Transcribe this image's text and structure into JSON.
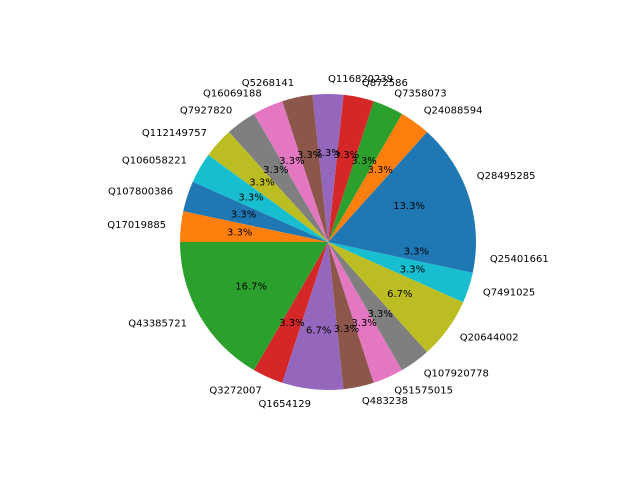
{
  "chart_data": {
    "type": "pie",
    "start_angle_deg": 0,
    "direction": "counterclockwise",
    "labels": [
      "Q28495285",
      "Q24088594",
      "Q7358073",
      "Q872586",
      "Q116820239",
      "Q5268141",
      "Q16069188",
      "Q7927820",
      "Q112149757",
      "Q106058221",
      "Q107800386",
      "Q17019885",
      "Q43385721",
      "Q3272007",
      "Q1654129",
      "Q483238",
      "Q51575015",
      "Q107920778",
      "Q20644002",
      "Q7491025",
      "Q25401661"
    ],
    "values": [
      4,
      1,
      1,
      1,
      1,
      1,
      1,
      1,
      1,
      1,
      1,
      1,
      5,
      1,
      2,
      1,
      1,
      1,
      2,
      1,
      1
    ],
    "percent_labels": [
      "13.3%",
      "3.3%",
      "3.3%",
      "3.3%",
      "3.3%",
      "3.3%",
      "3.3%",
      "3.3%",
      "3.3%",
      "3.3%",
      "3.3%",
      "3.3%",
      "16.7%",
      "3.3%",
      "6.7%",
      "3.3%",
      "3.3%",
      "3.3%",
      "6.7%",
      "3.3%",
      "3.3%"
    ],
    "colors": [
      "#1f77b4",
      "#ff7f0e",
      "#2ca02c",
      "#d62728",
      "#9467bd",
      "#8c564b",
      "#e377c2",
      "#7f7f7f",
      "#bcbd22",
      "#17becf"
    ]
  }
}
